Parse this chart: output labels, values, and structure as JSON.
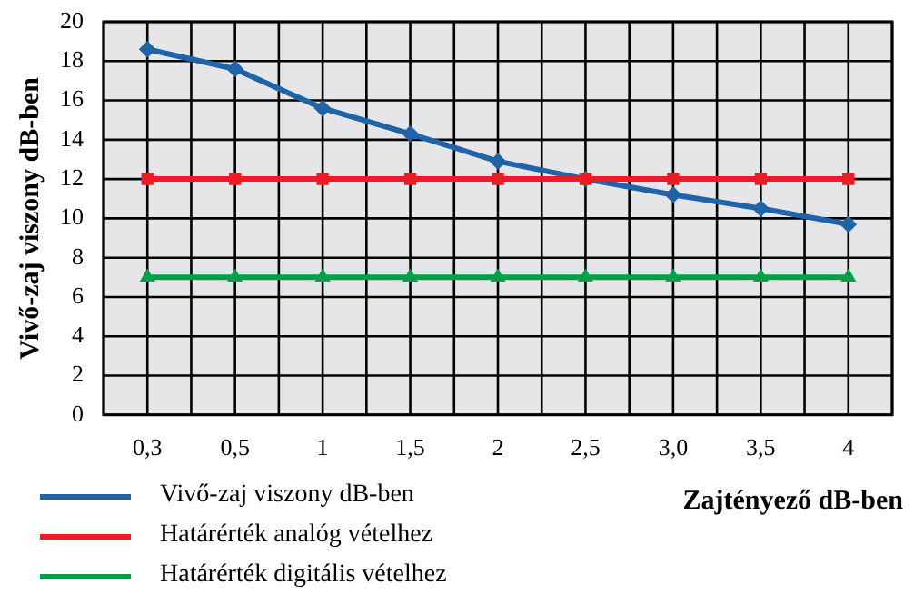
{
  "chart_data": {
    "type": "line",
    "xlabel": "Zajtényező dB-ben",
    "ylabel": "Vivő-zaj viszony dB-ben",
    "categories": [
      "0,3",
      "0,5",
      "1",
      "1,5",
      "2",
      "2,5",
      "3,0",
      "3,5",
      "4"
    ],
    "series": [
      {
        "name": "Vivő-zaj viszony dB-ben",
        "color": "#1f63a8",
        "marker": "diamond",
        "values": [
          18.6,
          17.6,
          15.6,
          14.3,
          12.9,
          12.0,
          11.2,
          10.5,
          9.7
        ]
      },
      {
        "name": "Határérték analóg vételhez",
        "color": "#ed1c24",
        "marker": "square",
        "values": [
          12,
          12,
          12,
          12,
          12,
          12,
          12,
          12,
          12
        ]
      },
      {
        "name": "Határérték digitális vételhez",
        "color": "#00a04b",
        "marker": "triangle",
        "values": [
          7,
          7,
          7,
          7,
          7,
          7,
          7,
          7,
          7
        ]
      }
    ],
    "ylim": [
      0,
      20
    ],
    "yticks": [
      0,
      2,
      4,
      6,
      8,
      10,
      12,
      14,
      16,
      18,
      20
    ],
    "grid": true,
    "legend": "bottom left",
    "line_style": "solid"
  }
}
